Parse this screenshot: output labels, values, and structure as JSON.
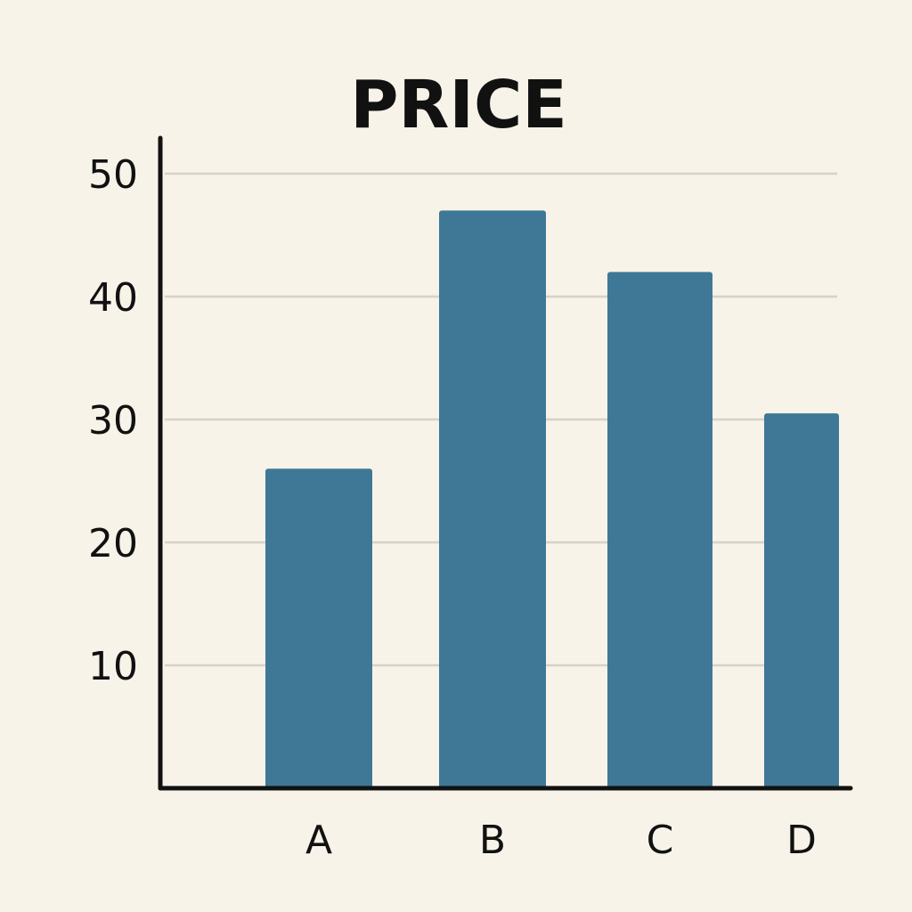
{
  "chart_data": {
    "type": "bar",
    "title": "PRICE",
    "xlabel": "",
    "ylabel": "",
    "categories": [
      "A",
      "B",
      "C",
      "D"
    ],
    "values": [
      26,
      47,
      42,
      30.5
    ],
    "ylim": [
      0,
      52
    ],
    "yticks": [
      10,
      20,
      30,
      40,
      50
    ],
    "grid": true,
    "legend": "none"
  },
  "colors": {
    "bar": "#3f7896",
    "background": "#f7f3e9",
    "axis": "#111111",
    "grid": "#d6d2c8"
  }
}
